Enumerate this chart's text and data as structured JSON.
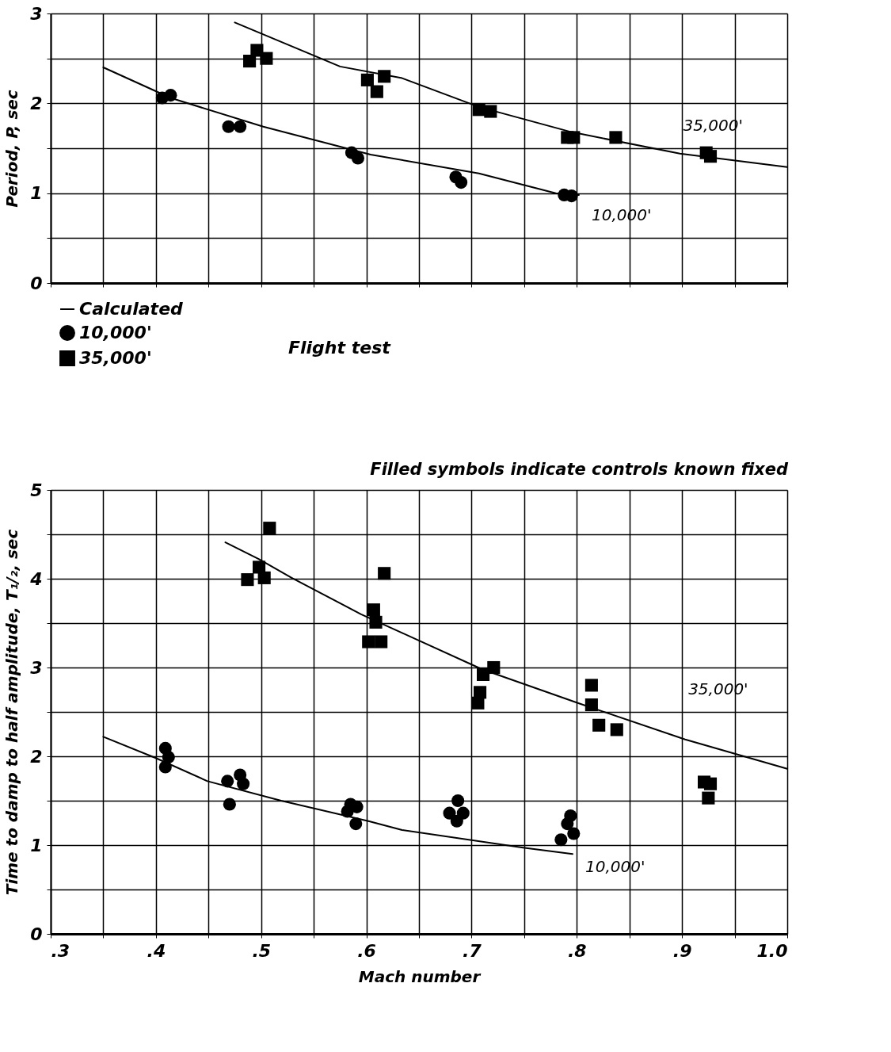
{
  "chart_data": [
    {
      "type": "scatter",
      "ylabel": "Period, P, sec",
      "xlim": [
        0.3,
        1.0
      ],
      "ylim": [
        0,
        3
      ],
      "xticks": [
        {
          "value": 0.3,
          "label": null
        },
        {
          "value": 0.35,
          "label": null
        },
        {
          "value": 0.4,
          "label": null
        },
        {
          "value": 0.45,
          "label": null
        },
        {
          "value": 0.5,
          "label": null
        },
        {
          "value": 0.55,
          "label": null
        },
        {
          "value": 0.6,
          "label": null
        },
        {
          "value": 0.65,
          "label": null
        },
        {
          "value": 0.7,
          "label": null
        },
        {
          "value": 0.75,
          "label": null
        },
        {
          "value": 0.8,
          "label": null
        },
        {
          "value": 0.85,
          "label": null
        },
        {
          "value": 0.9,
          "label": null
        },
        {
          "value": 0.95,
          "label": null
        },
        {
          "value": 1.0,
          "label": null
        }
      ],
      "yticks": [
        0,
        {
          "value": 0.5,
          "label": null
        },
        1,
        {
          "value": 1.5,
          "label": null
        },
        2,
        {
          "value": 2.5,
          "label": null
        },
        3
      ],
      "tick_labels": "y",
      "grid": true,
      "legend": "bottom",
      "series": [
        {
          "type": "line",
          "name": "Calculated",
          "color": "#000000",
          "x": [
            0.35,
            0.414,
            0.502,
            0.604,
            0.707,
            0.78,
            0.802
          ],
          "values": [
            2.4,
            2.06,
            1.74,
            1.43,
            1.22,
            1.0,
            0.98
          ]
        },
        {
          "type": "line",
          "color": "#000000",
          "x": [
            0.475,
            0.575,
            0.634,
            0.707,
            0.795,
            0.898,
            1.0
          ],
          "values": [
            2.9,
            2.41,
            2.28,
            1.96,
            1.68,
            1.44,
            1.29
          ]
        },
        {
          "marker": "circle",
          "name": "10,000'",
          "color": "#000000",
          "x": [
            0.406,
            0.414,
            0.469,
            0.48,
            0.586,
            0.592,
            0.685,
            0.69,
            0.788,
            0.795
          ],
          "values": [
            2.06,
            2.09,
            1.74,
            1.74,
            1.45,
            1.39,
            1.18,
            1.12,
            0.98,
            0.97
          ]
        },
        {
          "marker": "square",
          "name": "35,000'",
          "color": "#000000",
          "x": [
            0.489,
            0.496,
            0.505,
            0.601,
            0.61,
            0.617,
            0.707,
            0.718,
            0.791,
            0.797,
            0.837,
            0.923,
            0.927
          ],
          "values": [
            2.47,
            2.59,
            2.5,
            2.26,
            2.13,
            2.3,
            1.93,
            1.91,
            1.62,
            1.62,
            1.62,
            1.45,
            1.41
          ]
        }
      ],
      "annotations": [
        {
          "text": "35,000'",
          "x": 0.898,
          "y": 1.44
        },
        {
          "text": "10,000'",
          "x": 0.802,
          "y": 0.98
        },
        "Flight test"
      ]
    },
    {
      "type": "scatter",
      "subtitle": "Filled symbols indicate controls known fixed",
      "xlabel": "Mach number",
      "ylabel": "Time to damp to half amplitude, T₁/₂, sec",
      "xlim": [
        0.3,
        1.0
      ],
      "ylim": [
        0,
        5
      ],
      "xticks": [
        {
          "value": 0.3,
          "label": ".3"
        },
        {
          "value": 0.35,
          "label": null
        },
        {
          "value": 0.4,
          "label": ".4"
        },
        {
          "value": 0.45,
          "label": null
        },
        {
          "value": 0.5,
          "label": ".5"
        },
        {
          "value": 0.55,
          "label": null
        },
        {
          "value": 0.6,
          "label": ".6"
        },
        {
          "value": 0.65,
          "label": null
        },
        {
          "value": 0.7,
          "label": ".7"
        },
        {
          "value": 0.75,
          "label": null
        },
        {
          "value": 0.8,
          "label": ".8"
        },
        {
          "value": 0.85,
          "label": null
        },
        {
          "value": 0.9,
          "label": ".9"
        },
        {
          "value": 0.95,
          "label": null
        },
        {
          "value": 1.0,
          "label": "1.0"
        }
      ],
      "yticks": [
        0,
        {
          "value": 0.5,
          "label": null
        },
        1,
        {
          "value": 1.5,
          "label": null
        },
        2,
        {
          "value": 2.5,
          "label": null
        },
        3,
        {
          "value": 3.5,
          "label": null
        },
        4,
        {
          "value": 4.5,
          "label": null
        },
        5
      ],
      "grid": true,
      "series": [
        {
          "type": "line",
          "color": "#000000",
          "x": [
            0.35,
            0.4,
            0.449,
            0.519,
            0.602,
            0.634,
            0.749,
            0.796
          ],
          "values": [
            2.22,
            1.98,
            1.72,
            1.5,
            1.27,
            1.17,
            0.97,
            0.9
          ]
        },
        {
          "type": "line",
          "color": "#000000",
          "x": [
            0.466,
            0.498,
            0.529,
            0.595,
            0.634,
            0.71,
            0.801,
            0.903,
            1.0
          ],
          "values": [
            4.41,
            4.22,
            4.01,
            3.6,
            3.39,
            2.98,
            2.6,
            2.19,
            1.86
          ]
        },
        {
          "marker": "circle",
          "color": "#000000",
          "x": [
            0.409,
            0.412,
            0.409,
            0.468,
            0.48,
            0.483,
            0.47,
            0.585,
            0.591,
            0.582,
            0.59,
            0.687,
            0.679,
            0.692,
            0.686,
            0.794,
            0.791,
            0.797,
            0.785
          ],
          "values": [
            2.09,
            1.99,
            1.88,
            1.72,
            1.79,
            1.69,
            1.46,
            1.46,
            1.43,
            1.38,
            1.24,
            1.5,
            1.36,
            1.36,
            1.27,
            1.33,
            1.24,
            1.13,
            1.06
          ]
        },
        {
          "marker": "square",
          "color": "#000000",
          "x": [
            0.508,
            0.498,
            0.487,
            0.503,
            0.617,
            0.607,
            0.609,
            0.602,
            0.614,
            0.721,
            0.711,
            0.708,
            0.706,
            0.814,
            0.814,
            0.821,
            0.838,
            0.921,
            0.927,
            0.925
          ],
          "values": [
            4.57,
            4.13,
            3.99,
            4.01,
            4.06,
            3.65,
            3.51,
            3.29,
            3.29,
            3.0,
            2.92,
            2.72,
            2.6,
            2.8,
            2.58,
            2.35,
            2.3,
            1.71,
            1.69,
            1.53
          ]
        }
      ],
      "annotations": [
        {
          "text": "35,000'",
          "x": 0.903,
          "y": 2.19
        },
        {
          "text": "10,000'",
          "x": 0.796,
          "y": 0.9
        }
      ]
    }
  ]
}
